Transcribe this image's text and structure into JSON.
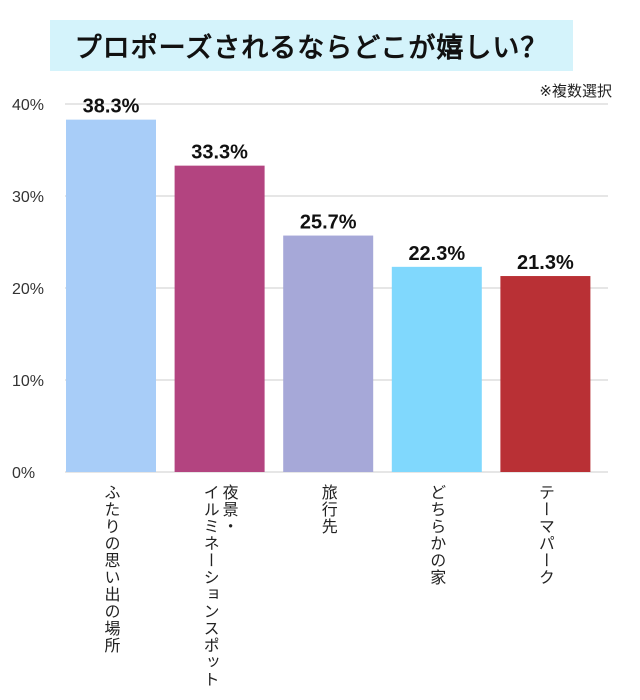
{
  "chart_data": {
    "type": "bar",
    "title": "プロポーズされるならどこが嬉しい？",
    "note": "※複数選択",
    "categories": [
      "ふたりの思い出の場所",
      "夜景・\nイルミネーションスポット",
      "旅行先",
      "どちらかの家",
      "テーマパーク"
    ],
    "values": [
      38.3,
      33.3,
      25.7,
      22.3,
      21.3
    ],
    "data_labels": [
      "38.3%",
      "33.3%",
      "25.7%",
      "22.3%",
      "21.3%"
    ],
    "colors": [
      "#a8cdf8",
      "#b34480",
      "#a6a8d8",
      "#80d8fd",
      "#b93035"
    ],
    "ylim": [
      0,
      40
    ],
    "yticks": [
      0,
      10,
      20,
      30,
      40
    ],
    "ytick_labels": [
      "0%",
      "10%",
      "20%",
      "30%",
      "40%"
    ],
    "grid": true,
    "xlabel": "",
    "ylabel": ""
  }
}
